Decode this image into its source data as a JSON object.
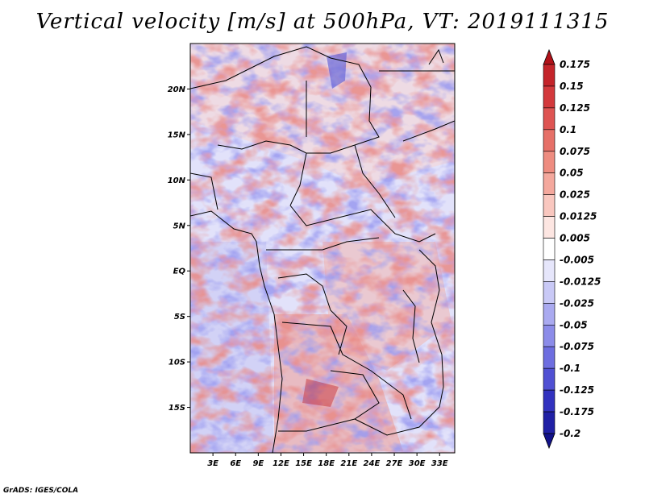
{
  "title": "Vertical velocity [m/s] at 500hPa, VT: 2019111315",
  "credit": "GrADS: IGES/COLA",
  "map": {
    "lat_labels": [
      "20N",
      "15N",
      "10N",
      "5N",
      "EQ",
      "5S",
      "10S",
      "15S"
    ],
    "lat_values": [
      20,
      15,
      10,
      5,
      0,
      -5,
      -10,
      -15
    ],
    "lon_labels": [
      "3E",
      "6E",
      "9E",
      "12E",
      "15E",
      "18E",
      "21E",
      "24E",
      "27E",
      "30E",
      "33E"
    ],
    "lon_values": [
      3,
      6,
      9,
      12,
      15,
      18,
      21,
      24,
      27,
      30,
      33
    ],
    "lon_range": [
      0,
      35
    ],
    "lat_range": [
      -20,
      25
    ]
  },
  "colorbar": {
    "labels": [
      "0.175",
      "0.15",
      "0.125",
      "0.1",
      "0.075",
      "0.05",
      "0.025",
      "0.0125",
      "0.005",
      "-0.005",
      "-0.0125",
      "-0.025",
      "-0.05",
      "-0.075",
      "-0.1",
      "-0.125",
      "-0.175",
      "-0.2"
    ],
    "colors": [
      "#b11219",
      "#c4242a",
      "#d3393c",
      "#de5452",
      "#e67068",
      "#ee8c80",
      "#f4a89d",
      "#f9c7bf",
      "#fde6e2",
      "#ffffff",
      "#e6e6fb",
      "#c9c9f6",
      "#aaaaf0",
      "#8c8ce9",
      "#6e6ee0",
      "#5050d3",
      "#3232bf",
      "#2020a5",
      "#12128a"
    ]
  }
}
